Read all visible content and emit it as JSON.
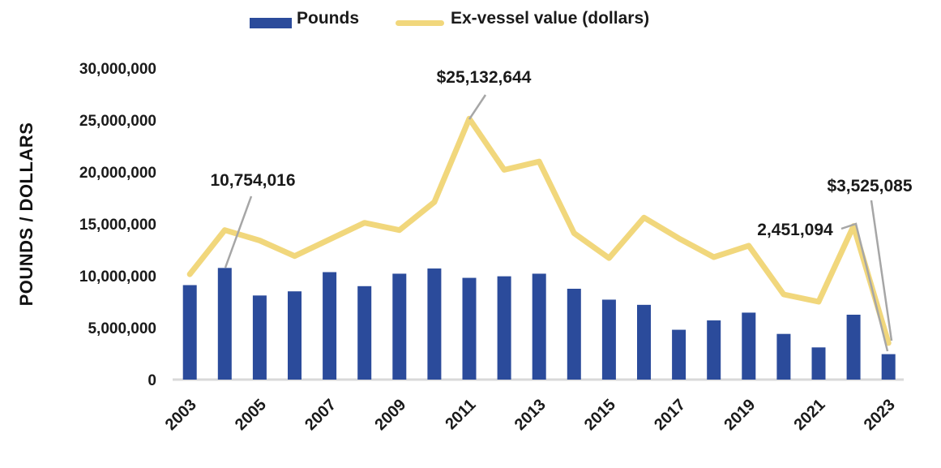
{
  "legend": {
    "pounds_label": "Pounds",
    "line_label": "Ex-vessel value (dollars)"
  },
  "y_axis": {
    "title": "POUNDS / DOLLARS"
  },
  "colors": {
    "bar": "#2B4B9B",
    "line": "#F1D77C",
    "axis_line": "#D9D9D9",
    "leader_line": "#A6A6A6",
    "text": "#1A1A1A"
  },
  "chart_data": {
    "type": "bar",
    "subtype": "combo-bar-line",
    "categories": [
      2003,
      2004,
      2005,
      2006,
      2007,
      2008,
      2009,
      2010,
      2011,
      2012,
      2013,
      2014,
      2015,
      2016,
      2017,
      2018,
      2019,
      2020,
      2021,
      2022,
      2023
    ],
    "series": [
      {
        "name": "Pounds",
        "type": "bar",
        "values": [
          9100000,
          10754016,
          8100000,
          8500000,
          10350000,
          9000000,
          10200000,
          10700000,
          9800000,
          9950000,
          10200000,
          8750000,
          7700000,
          7200000,
          4800000,
          5700000,
          6450000,
          4400000,
          3100000,
          6250000,
          2451094
        ]
      },
      {
        "name": "Ex-vessel value (dollars)",
        "type": "line",
        "values": [
          10150000,
          14400000,
          13400000,
          11900000,
          13500000,
          15100000,
          14400000,
          17100000,
          25132644,
          20200000,
          21000000,
          14100000,
          11700000,
          15600000,
          13600000,
          11800000,
          12900000,
          8200000,
          7500000,
          14800000,
          3525085
        ]
      }
    ],
    "title": "",
    "xlabel": "",
    "ylabel": "POUNDS / DOLLARS",
    "ylim": [
      0,
      30000000
    ],
    "y_tick_step": 5000000,
    "y_tick_labels": [
      "0",
      "5,000,000",
      "10,000,000",
      "15,000,000",
      "20,000,000",
      "25,000,000",
      "30,000,000"
    ],
    "x_tick_labels": [
      "2003",
      "2005",
      "2007",
      "2009",
      "2011",
      "2013",
      "2015",
      "2017",
      "2019",
      "2021",
      "2023"
    ],
    "grid": false,
    "legend_position": "top",
    "annotations": [
      {
        "text": "10,754,016",
        "series": "Pounds",
        "year": 2004,
        "value": 10754016
      },
      {
        "text": "$25,132,644",
        "series": "Ex-vessel value (dollars)",
        "year": 2011,
        "value": 25132644
      },
      {
        "text": "2,451,094",
        "series": "Pounds",
        "year": 2023,
        "value": 2451094
      },
      {
        "text": "$3,525,085",
        "series": "Ex-vessel value (dollars)",
        "year": 2023,
        "value": 3525085
      }
    ]
  }
}
